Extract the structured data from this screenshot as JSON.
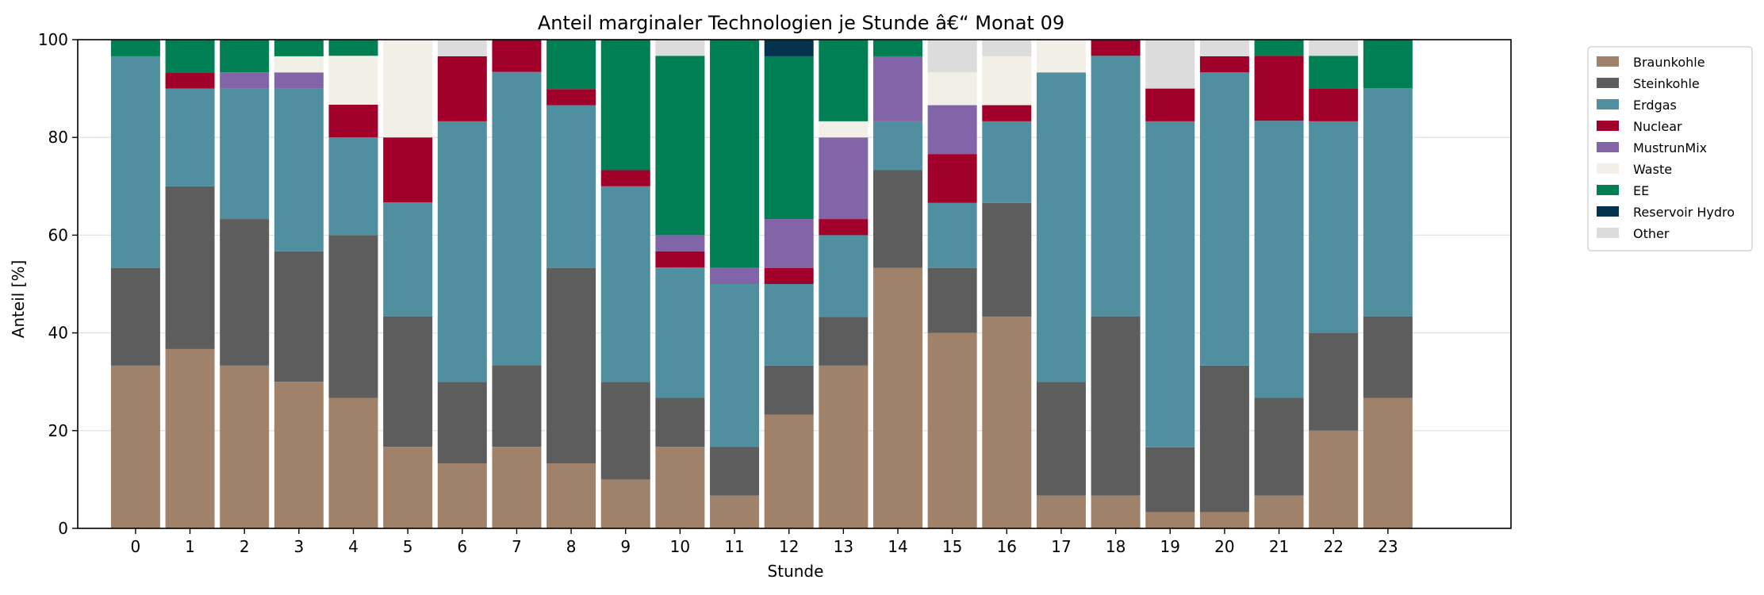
{
  "chart_data": {
    "type": "bar",
    "stacked": true,
    "title": "Anteil marginaler Technologien je Stunde â€“ Monat 09",
    "xlabel": "Stunde",
    "ylabel": "Anteil [%]",
    "ylim": [
      0,
      100
    ],
    "yticks": [
      0,
      20,
      40,
      60,
      80,
      100
    ],
    "grid": "y",
    "legend_position": "outside-right-top",
    "categories": [
      "0",
      "1",
      "2",
      "3",
      "4",
      "5",
      "6",
      "7",
      "8",
      "9",
      "10",
      "11",
      "12",
      "13",
      "14",
      "15",
      "16",
      "17",
      "18",
      "19",
      "20",
      "21",
      "22",
      "23"
    ],
    "series": [
      {
        "name": "Braunkohle",
        "color": "#a0826a",
        "values": [
          33.3,
          36.7,
          33.3,
          30.0,
          26.7,
          16.7,
          13.3,
          16.7,
          13.3,
          10.0,
          16.7,
          6.7,
          23.3,
          33.3,
          53.3,
          40.0,
          43.3,
          6.7,
          6.7,
          3.3,
          3.3,
          6.7,
          20.0,
          26.7
        ]
      },
      {
        "name": "Steinkohle",
        "color": "#5d5d5d",
        "values": [
          20.0,
          33.3,
          30.0,
          26.7,
          33.3,
          26.7,
          16.7,
          16.7,
          40.0,
          20.0,
          10.0,
          10.0,
          10.0,
          10.0,
          20.0,
          13.3,
          23.3,
          23.3,
          36.7,
          13.3,
          30.0,
          20.0,
          20.0,
          16.7
        ]
      },
      {
        "name": "Erdgas",
        "color": "#4f8fa0",
        "values": [
          43.3,
          20.0,
          26.7,
          33.3,
          20.0,
          23.3,
          53.3,
          60.0,
          33.3,
          40.0,
          26.7,
          33.3,
          16.7,
          16.7,
          10.0,
          13.3,
          16.7,
          63.3,
          53.3,
          66.7,
          60.0,
          56.7,
          43.3,
          46.7
        ]
      },
      {
        "name": "Nuclear",
        "color": "#a0002a",
        "values": [
          0,
          3.3,
          0,
          0,
          6.7,
          13.3,
          13.3,
          6.7,
          3.3,
          3.3,
          3.3,
          0,
          3.3,
          3.3,
          0,
          10.0,
          3.3,
          0,
          3.3,
          6.7,
          3.3,
          13.3,
          6.7,
          0
        ]
      },
      {
        "name": "MustrunMix",
        "color": "#8264a8",
        "values": [
          0,
          0,
          3.3,
          3.3,
          0,
          0,
          0,
          0,
          0,
          0,
          3.3,
          3.3,
          10.0,
          16.7,
          13.3,
          10.0,
          0,
          0,
          0,
          0,
          0,
          0,
          0,
          0
        ]
      },
      {
        "name": "Waste",
        "color": "#f2efe6",
        "values": [
          0,
          0,
          0,
          3.3,
          10.0,
          20.0,
          0,
          0,
          0,
          0,
          0,
          0,
          0,
          3.3,
          0,
          6.7,
          10.0,
          6.7,
          0,
          0,
          0,
          0,
          0,
          0
        ]
      },
      {
        "name": "EE",
        "color": "#007f55",
        "values": [
          3.3,
          6.7,
          6.7,
          3.3,
          3.3,
          0,
          0,
          0,
          10.0,
          26.7,
          36.7,
          46.7,
          33.3,
          16.7,
          3.3,
          0,
          0,
          0,
          0,
          0,
          0,
          3.3,
          6.7,
          10.0
        ]
      },
      {
        "name": "Reservoir Hydro",
        "color": "#05334d",
        "values": [
          0,
          0,
          0,
          0,
          0,
          0,
          0,
          0,
          0,
          0,
          0,
          0,
          3.3,
          0,
          0,
          0,
          0,
          0,
          0,
          0,
          0,
          0,
          0,
          0
        ]
      },
      {
        "name": "Other",
        "color": "#dcdcdc",
        "values": [
          0,
          0,
          0,
          0,
          0,
          0,
          3.3,
          0,
          0,
          0,
          3.3,
          0,
          0,
          0,
          0,
          6.7,
          3.3,
          0,
          0,
          10.0,
          3.3,
          0,
          3.3,
          0
        ]
      }
    ]
  }
}
